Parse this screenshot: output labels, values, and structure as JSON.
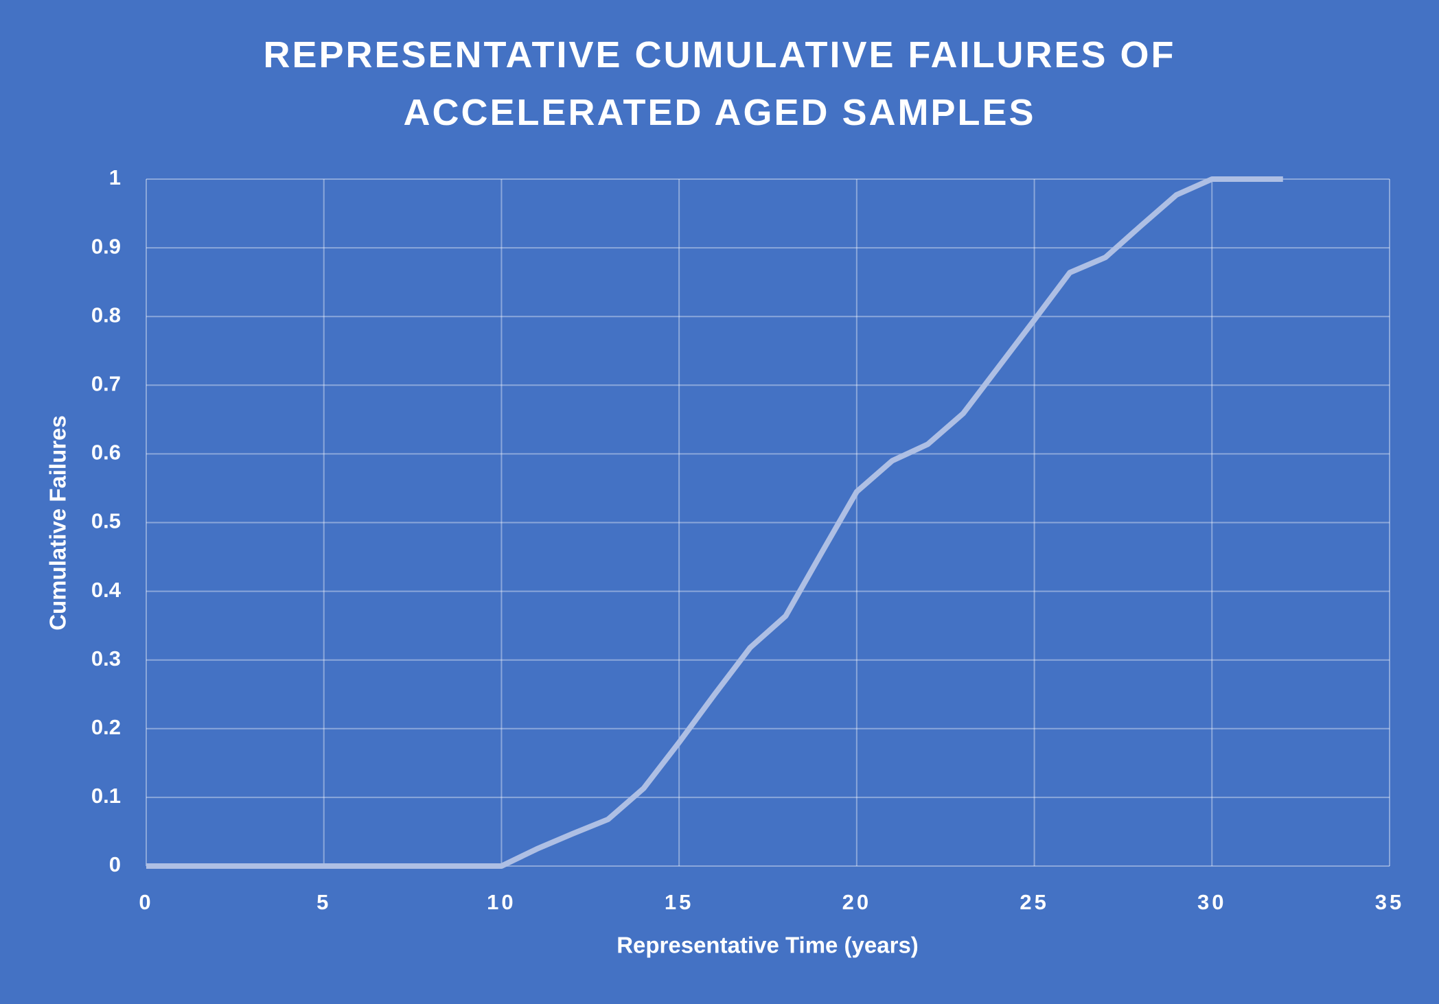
{
  "chart_data": {
    "type": "line",
    "title": "REPRESENTATIVE CUMULATIVE FAILURES OF ACCELERATED AGED SAMPLES",
    "x_label": "Representative Time (years)",
    "y_label": "Cumulative Failures",
    "x": [
      0,
      1,
      2,
      3,
      4,
      5,
      6,
      7,
      8,
      9,
      10,
      11,
      12,
      13,
      14,
      15,
      16,
      17,
      18,
      19,
      20,
      21,
      22,
      23,
      24,
      25,
      26,
      27,
      28,
      29,
      30,
      31,
      32
    ],
    "series": [
      {
        "name": "Cumulative Failures",
        "color": "#aebfe4",
        "values": [
          0,
          0,
          0,
          0,
          0,
          0,
          0,
          0,
          0,
          0,
          0,
          0.025,
          0.047,
          0.068,
          0.113,
          0.18,
          0.25,
          0.318,
          0.364,
          0.455,
          0.545,
          0.59,
          0.614,
          0.659,
          0.727,
          0.795,
          0.864,
          0.886,
          0.932,
          0.977,
          1,
          1,
          1
        ]
      }
    ],
    "xlim": [
      0,
      35
    ],
    "xticks": [
      0,
      5,
      10,
      15,
      20,
      25,
      30,
      35
    ],
    "ylim": [
      0,
      1
    ],
    "yticks": [
      0,
      0.1,
      0.2,
      0.3,
      0.4,
      0.5,
      0.6,
      0.7,
      0.8,
      0.9,
      1
    ],
    "grid": true
  }
}
